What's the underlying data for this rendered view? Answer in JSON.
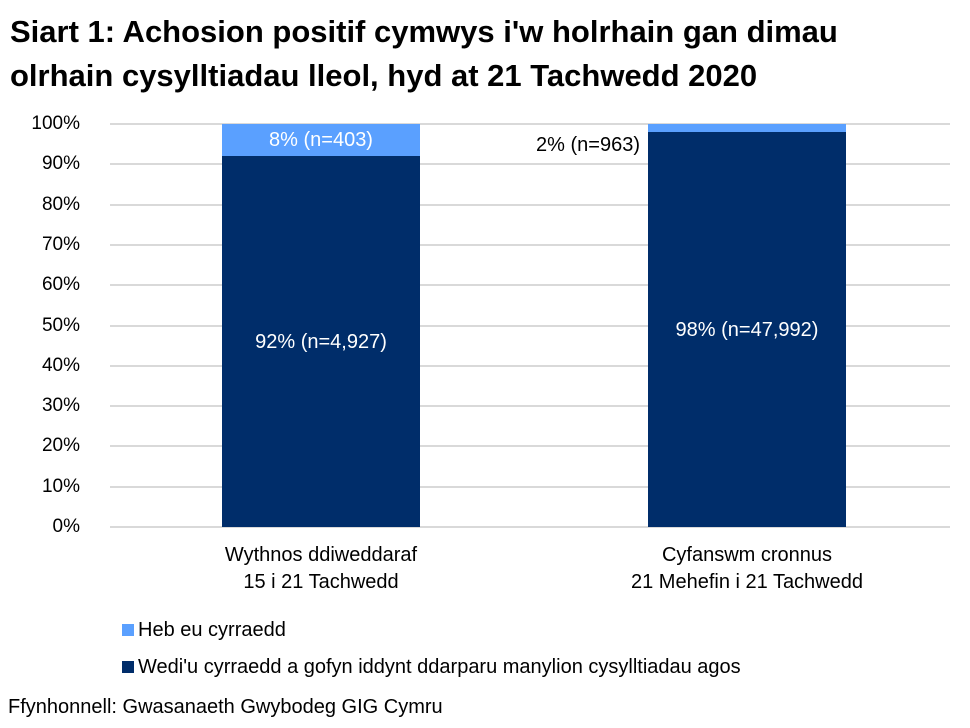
{
  "chart_data": {
    "type": "bar",
    "stacked": true,
    "title": "Siart 1: Achosion positif cymwys i'w holrhain gan dimau olrhain cysylltiadau lleol, hyd at 21 Tachwedd 2020",
    "xlabel": "",
    "ylabel": "",
    "ylim": [
      0,
      100
    ],
    "yticks": [
      "0%",
      "10%",
      "20%",
      "30%",
      "40%",
      "50%",
      "60%",
      "70%",
      "80%",
      "90%",
      "100%"
    ],
    "grid": true,
    "legend_position": "bottom",
    "categories": [
      {
        "line1": "Wythnos ddiweddaraf",
        "line2": "15 i 21 Tachwedd"
      },
      {
        "line1": "Cyfanswm cronnus",
        "line2": "21 Mehefin i 21 Tachwedd"
      }
    ],
    "series": [
      {
        "name": "Wedi'u cyrraedd a gofyn iddynt ddarparu manylion cysylltiadau agos",
        "color": "#002d6a",
        "values": [
          92,
          98
        ],
        "counts": [
          4927,
          47992
        ],
        "labels": [
          "92% (n=4,927)",
          "98% (n=47,992)"
        ]
      },
      {
        "name": "Heb eu cyrraedd",
        "color": "#5aa0ff",
        "values": [
          8,
          2
        ],
        "counts": [
          403,
          963
        ],
        "labels": [
          "8% (n=403)",
          "2% (n=963)"
        ]
      }
    ],
    "source": "Ffynhonnell: Gwasanaeth Gwybodeg GIG Cymru"
  },
  "title_line1": "Siart 1: Achosion positif cymwys i'w holrhain gan dimau",
  "title_line2": "olrhain cysylltiadau lleol, hyd at 21 Tachwedd 2020",
  "legend": [
    {
      "label": "Heb eu cyrraedd",
      "color": "#5aa0ff"
    },
    {
      "label": "Wedi'u cyrraedd a gofyn iddynt ddarparu manylion cysylltiadau agos",
      "color": "#002d6a"
    }
  ],
  "source": "Ffynhonnell: Gwasanaeth Gwybodeg GIG Cymru"
}
